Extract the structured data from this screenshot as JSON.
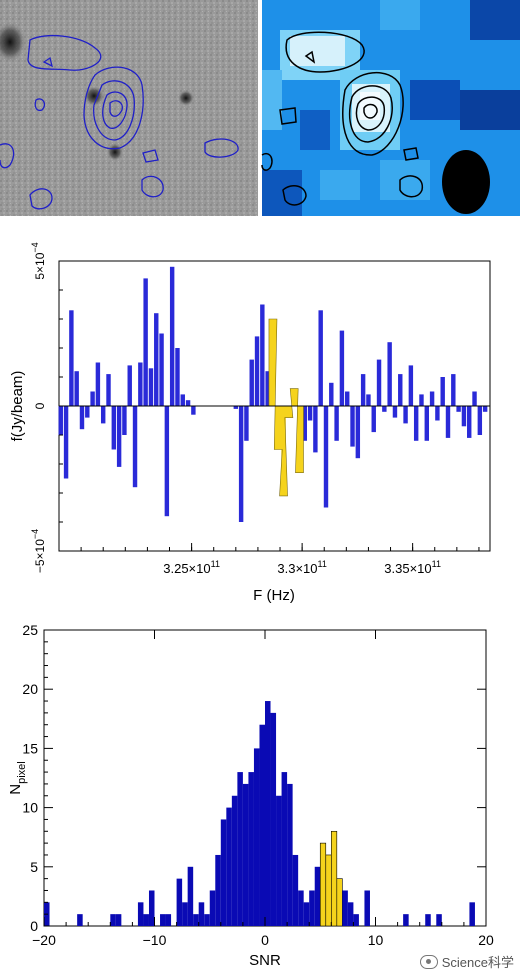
{
  "top_panels": {
    "left": "optical greyscale image with blue contours",
    "right": "blue colormap image with black contours and beam ellipse"
  },
  "chart_data": [
    {
      "type": "bar",
      "xlabel": "F (Hz)",
      "ylabel": "f(Jy/beam)",
      "xlim": [
        319000000000.0,
        338500000000.0
      ],
      "ylim": [
        -0.0005,
        0.0005
      ],
      "xticks": [
        {
          "value": 325000000000.0,
          "label": "3.25×10",
          "exp": "11"
        },
        {
          "value": 330000000000.0,
          "label": "3.3×10",
          "exp": "11"
        },
        {
          "value": 335000000000.0,
          "label": "3.35×10",
          "exp": "11"
        }
      ],
      "yticks": [
        {
          "value": 0.0005,
          "label": "5×10",
          "exp": "−4"
        },
        {
          "value": 0,
          "label": "0",
          "exp": ""
        },
        {
          "value": -0.0005,
          "label": "−5×10",
          "exp": "−4"
        }
      ],
      "bin_width": 200000000.0,
      "highlight_range": [
        328600000000.0,
        330000000000.0
      ],
      "colors": {
        "bars": "#2a2ad8",
        "highlight": "#f5d31c",
        "zero_line": "#000000"
      },
      "x": [
        319080000000.0,
        319320000000.0,
        319560000000.0,
        319800000000.0,
        320040000000.0,
        320280000000.0,
        320520000000.0,
        320760000000.0,
        321000000000.0,
        321240000000.0,
        321480000000.0,
        321720000000.0,
        321960000000.0,
        322200000000.0,
        322440000000.0,
        322680000000.0,
        322920000000.0,
        323160000000.0,
        323400000000.0,
        323640000000.0,
        323880000000.0,
        324120000000.0,
        324360000000.0,
        324600000000.0,
        324840000000.0,
        325080000000.0,
        325320000000.0,
        325560000000.0,
        325800000000.0,
        326040000000.0,
        326280000000.0,
        326520000000.0,
        326760000000.0,
        327000000000.0,
        327240000000.0,
        327480000000.0,
        327720000000.0,
        327960000000.0,
        328200000000.0,
        328440000000.0,
        328680000000.0,
        328920000000.0,
        329160000000.0,
        329400000000.0,
        329640000000.0,
        329880000000.0,
        330120000000.0,
        330360000000.0,
        330600000000.0,
        330840000000.0,
        331080000000.0,
        331320000000.0,
        331560000000.0,
        331800000000.0,
        332040000000.0,
        332280000000.0,
        332520000000.0,
        332760000000.0,
        333000000000.0,
        333240000000.0,
        333480000000.0,
        333720000000.0,
        333960000000.0,
        334200000000.0,
        334440000000.0,
        334680000000.0,
        334920000000.0,
        335160000000.0,
        335400000000.0,
        335640000000.0,
        335880000000.0,
        336120000000.0,
        336360000000.0,
        336600000000.0,
        336840000000.0,
        337080000000.0,
        337320000000.0,
        337560000000.0,
        337800000000.0,
        338040000000.0,
        338280000000.0
      ],
      "values": [
        -0.0001,
        -0.00025,
        0.00033,
        0.00012,
        -8e-05,
        -4e-05,
        5e-05,
        0.00015,
        -6e-05,
        0.00011,
        -0.00015,
        -0.00021,
        -0.0001,
        0.00014,
        -0.00028,
        0.00015,
        0.00044,
        0.00013,
        0.00032,
        0.00025,
        -0.00038,
        0.00048,
        0.0002,
        4e-05,
        2e-05,
        -3e-05,
        0.0,
        0.0,
        0.0,
        0.0,
        0.0,
        0.0,
        0.0,
        -1e-05,
        -0.0004,
        -0.00012,
        0.00016,
        0.00024,
        0.00035,
        0.00012,
        0.0003,
        -0.00015,
        -0.00031,
        -4e-05,
        6e-05,
        -0.00023,
        -0.00012,
        -5e-05,
        -0.00016,
        0.00033,
        -0.00035,
        8e-05,
        -0.00012,
        0.00026,
        5e-05,
        -0.00014,
        -0.00018,
        0.00011,
        4e-05,
        -9e-05,
        0.00016,
        -2e-05,
        0.00022,
        -4e-05,
        0.00011,
        -6e-05,
        0.00014,
        -0.00012,
        4e-05,
        -0.00012,
        5e-05,
        -5e-05,
        0.0001,
        -0.00011,
        0.00011,
        -2e-05,
        -7e-05,
        -0.00011,
        5e-05,
        -0.0001,
        -2e-05
      ]
    },
    {
      "type": "bar",
      "xlabel": "SNR",
      "ylabel": "N",
      "ylabel_sub": "pixel",
      "xlim": [
        -20,
        20
      ],
      "ylim": [
        0,
        25
      ],
      "xticks": [
        -20,
        -10,
        0,
        10,
        20
      ],
      "yticks": [
        0,
        5,
        10,
        15,
        20,
        25
      ],
      "bin_width": 0.5,
      "colors": {
        "bars": "#0a0ab4",
        "highlight": "#f5d31c"
      },
      "x": [
        -19.75,
        -16.75,
        -13.75,
        -13.25,
        -11.25,
        -10.75,
        -10.25,
        -9.25,
        -8.75,
        -7.75,
        -7.25,
        -6.75,
        -6.25,
        -5.75,
        -5.25,
        -4.75,
        -4.25,
        -3.75,
        -3.25,
        -2.75,
        -2.25,
        -1.75,
        -1.25,
        -0.75,
        -0.25,
        0.25,
        0.75,
        1.25,
        1.75,
        2.25,
        2.75,
        3.25,
        3.75,
        4.25,
        4.75,
        5.25,
        5.75,
        6.25,
        6.75,
        7.25,
        7.75,
        8.25,
        9.25,
        12.75,
        14.75,
        15.75,
        18.75
      ],
      "values": [
        2,
        1,
        1,
        1,
        2,
        1,
        3,
        1,
        1,
        4,
        2,
        5,
        1,
        2,
        1,
        3,
        6,
        9,
        10,
        11,
        13,
        12,
        13,
        15,
        17,
        19,
        18,
        11,
        13,
        12,
        6,
        3,
        2,
        3,
        5,
        7,
        6,
        8,
        4,
        3,
        2,
        1,
        3,
        1,
        1,
        1,
        2
      ],
      "highlight": [
        0,
        0,
        0,
        0,
        0,
        0,
        0,
        0,
        0,
        0,
        0,
        0,
        0,
        0,
        0,
        0,
        0,
        0,
        0,
        0,
        0,
        0,
        0,
        0,
        0,
        0,
        0,
        0,
        0,
        0,
        0,
        0,
        0,
        0,
        0,
        5,
        7,
        6,
        4,
        0,
        0,
        0,
        0,
        0,
        0,
        0,
        0
      ]
    }
  ],
  "watermark": {
    "text": "Science科学"
  }
}
